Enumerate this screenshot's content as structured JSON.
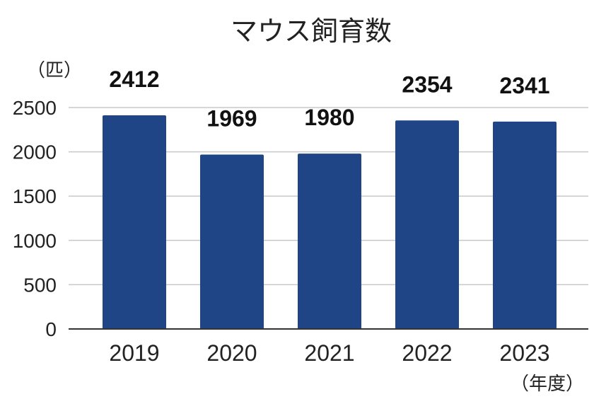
{
  "chart_data": {
    "type": "bar",
    "title": "マウス飼育数",
    "ylabel": "（匹）",
    "xlabel": "（年度）",
    "categories": [
      "2019",
      "2020",
      "2021",
      "2022",
      "2023"
    ],
    "values": [
      2412,
      1969,
      1980,
      2354,
      2341
    ],
    "ylim": [
      0,
      2500
    ],
    "yticks": [
      0,
      500,
      1000,
      1500,
      2000,
      2500
    ],
    "grid": true,
    "legend": "none",
    "bar_color": "#1f4587"
  }
}
